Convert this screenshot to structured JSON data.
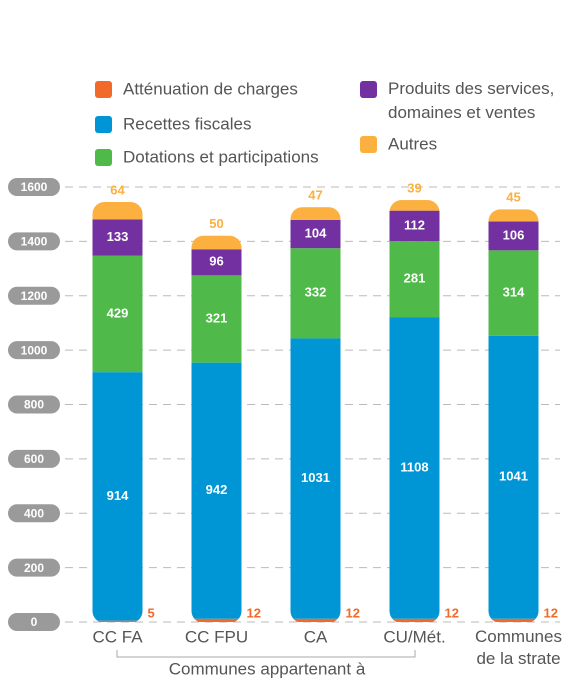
{
  "chart_data": {
    "type": "stacked_bar",
    "categories": [
      "CC FA",
      "CC FPU",
      "CA",
      "CU/Mét.",
      "Communes de la strate"
    ],
    "series": [
      {
        "name": "Atténuation de charges",
        "color": "#f26a2a",
        "values": [
          5,
          12,
          12,
          12,
          12
        ]
      },
      {
        "name": "Recettes fiscales",
        "color": "#0096d6",
        "values": [
          914,
          942,
          1031,
          1108,
          1041
        ]
      },
      {
        "name": "Dotations et participations",
        "color": "#4fba4a",
        "values": [
          429,
          321,
          332,
          281,
          314
        ]
      },
      {
        "name": "Produits des services, domaines et ventes",
        "color": "#7330a0",
        "values": [
          133,
          96,
          104,
          112,
          106
        ]
      },
      {
        "name": "Autres",
        "color": "#fbb040",
        "values": [
          64,
          50,
          47,
          39,
          45
        ]
      }
    ],
    "ylim": [
      0,
      1600
    ],
    "yticks": [
      0,
      200,
      400,
      600,
      800,
      1000,
      1200,
      1400,
      1600
    ],
    "grid": true,
    "annotation": "Communes appartenant à"
  }
}
